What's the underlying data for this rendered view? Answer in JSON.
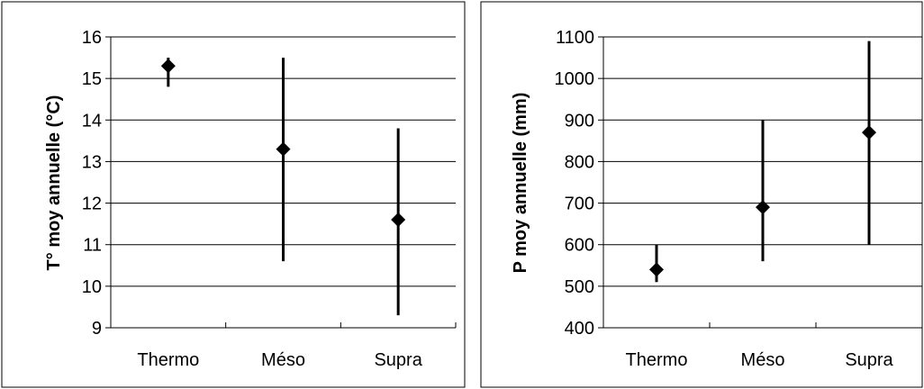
{
  "chart_data": [
    {
      "type": "range",
      "ylabel": "T° moy annuelle (°C)",
      "categories": [
        "Thermo",
        "Méso",
        "Supra"
      ],
      "ylim": [
        9,
        16
      ],
      "yticks": [
        9,
        10,
        11,
        12,
        13,
        14,
        15,
        16
      ],
      "grid": true,
      "series": [
        {
          "mean": [
            15.3,
            13.3,
            11.6
          ],
          "low": [
            14.8,
            10.6,
            9.3
          ],
          "high": [
            15.5,
            15.5,
            13.8
          ]
        }
      ]
    },
    {
      "type": "range",
      "ylabel": "P moy annuelle (mm)",
      "categories": [
        "Thermo",
        "Méso",
        "Supra"
      ],
      "ylim": [
        400,
        1100
      ],
      "yticks": [
        400,
        500,
        600,
        700,
        800,
        900,
        1000,
        1100
      ],
      "grid": true,
      "series": [
        {
          "mean": [
            540,
            690,
            870
          ],
          "low": [
            510,
            560,
            600
          ],
          "high": [
            600,
            900,
            1090
          ]
        }
      ]
    }
  ]
}
